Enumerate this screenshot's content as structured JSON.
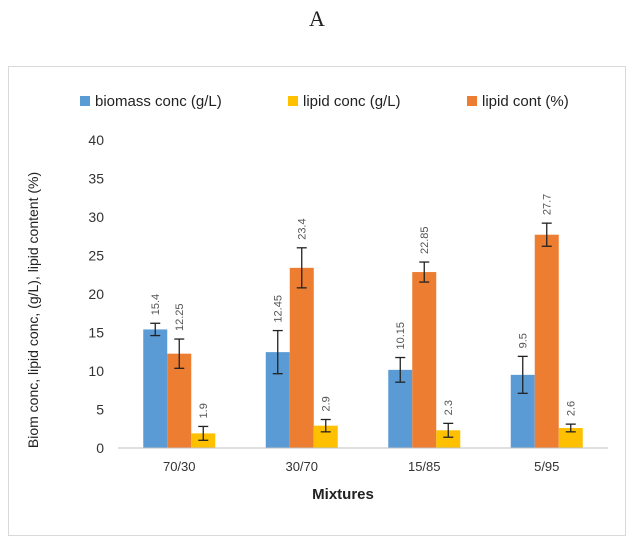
{
  "panel_label": "A",
  "chart_data": {
    "type": "bar",
    "categories": [
      "70/30",
      "30/70",
      "15/85",
      "5/95"
    ],
    "series": [
      {
        "name": "biomass conc (g/L)",
        "color": "#5b9bd5",
        "values": [
          15.4,
          12.45,
          10.15,
          9.5
        ],
        "errors": [
          0.8,
          2.8,
          1.6,
          2.4
        ],
        "labels": [
          "15.4",
          "12.45",
          "10.15",
          "9.5"
        ]
      },
      {
        "name": "lipid cont (%)",
        "color": "#ed7d31",
        "values": [
          12.25,
          23.4,
          22.85,
          27.7
        ],
        "errors": [
          1.9,
          2.6,
          1.3,
          1.5
        ],
        "labels": [
          "12.25",
          "23.4",
          "22.85",
          "27.7"
        ]
      },
      {
        "name": "lipid conc (g/L)",
        "color": "#ffc000",
        "values": [
          1.9,
          2.9,
          2.3,
          2.6
        ],
        "errors": [
          0.9,
          0.8,
          0.9,
          0.5
        ],
        "labels": [
          "1.9",
          "2.9",
          "2.3",
          "2.6"
        ]
      }
    ],
    "legend_order": [
      "biomass conc (g/L)",
      "lipid conc (g/L)",
      "lipid cont (%)"
    ],
    "legend_position": "top",
    "xlabel": "Mixtures",
    "ylabel": "Biom conc, lipid conc, (g/L), lipid content (%)",
    "ylim": [
      0,
      40
    ],
    "yticks": [
      "0",
      "5",
      "10",
      "15",
      "20",
      "25",
      "30",
      "35",
      "40"
    ],
    "grid": false
  }
}
